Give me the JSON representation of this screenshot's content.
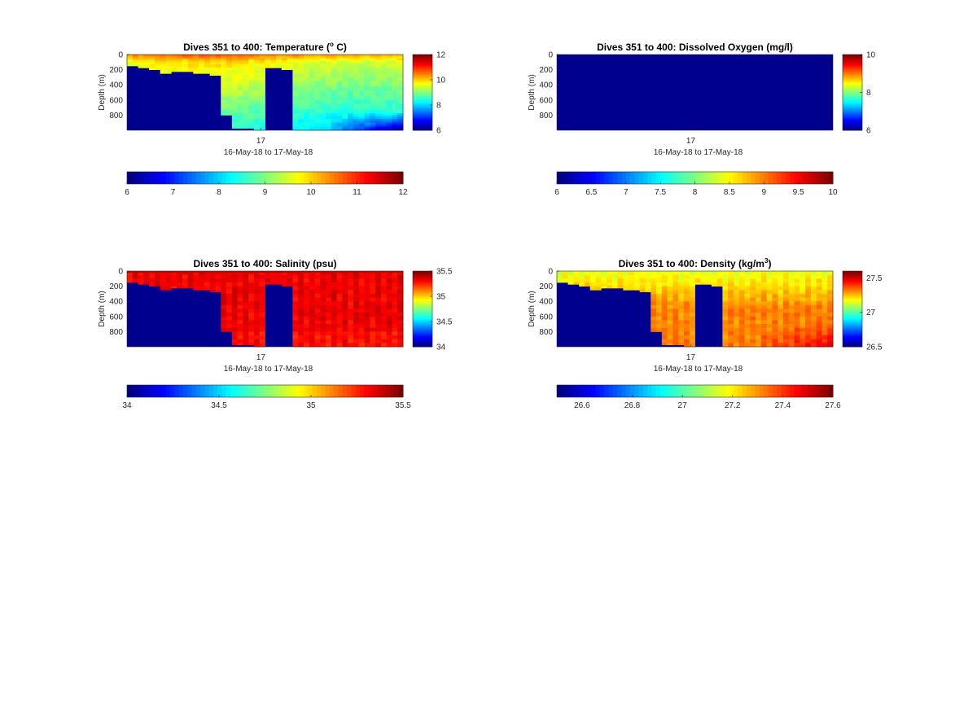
{
  "chart_data": [
    {
      "type": "heatmap",
      "title": "Dives 351 to 400: Temperature (",
      "title_sup": "o",
      "title_end": " C)",
      "xlabel": "16-May-18 to 17-May-18",
      "ylabel": "Depth (m)",
      "x_ticks": [
        "17"
      ],
      "y_ticks": [
        "0",
        "200",
        "400",
        "600",
        "800"
      ],
      "ylim": [
        0,
        1000
      ],
      "colormap": "jet",
      "clim": [
        6,
        12
      ],
      "colorbar_ticks": [
        "6",
        "8",
        "10",
        "12"
      ],
      "h_colorbar_ticks": [
        "6",
        "7",
        "8",
        "9",
        "10",
        "11",
        "12"
      ],
      "nodata_color": "#00008f",
      "bottom_profile": [
        135,
        135,
        165,
        165,
        185,
        200,
        240,
        240,
        210,
        210,
        210,
        220,
        230,
        250,
        250,
        260,
        260,
        800,
        800,
        960,
        960,
        960,
        960,
        1000,
        1000,
        170,
        170,
        170,
        200,
        200,
        1000
      ],
      "field": "temperature"
    },
    {
      "type": "heatmap",
      "title": "Dives 351 to 400: Dissolved Oxygen (mg/l)",
      "xlabel": "16-May-18 to 17-May-18",
      "ylabel": "Depth (m)",
      "x_ticks": [
        "17"
      ],
      "y_ticks": [
        "0",
        "200",
        "400",
        "600",
        "800"
      ],
      "ylim": [
        0,
        1000
      ],
      "colormap": "jet",
      "clim": [
        6,
        10
      ],
      "colorbar_ticks": [
        "6",
        "8",
        "10"
      ],
      "h_colorbar_ticks": [
        "6",
        "6.5",
        "7",
        "7.5",
        "8",
        "8.5",
        "9",
        "9.5",
        "10"
      ],
      "nodata_color": "#00008f",
      "field": "empty"
    },
    {
      "type": "heatmap",
      "title": "Dives 351 to 400: Salinity (psu)",
      "xlabel": "16-May-18 to 17-May-18",
      "ylabel": "Depth (m)",
      "x_ticks": [
        "17"
      ],
      "y_ticks": [
        "0",
        "200",
        "400",
        "600",
        "800"
      ],
      "ylim": [
        0,
        1000
      ],
      "colormap": "jet",
      "clim": [
        34,
        35.5
      ],
      "colorbar_ticks": [
        "34",
        "34.5",
        "35",
        "35.5"
      ],
      "h_colorbar_ticks": [
        "34",
        "34.5",
        "35",
        "35.5"
      ],
      "nodata_color": "#00008f",
      "bottom_profile": [
        135,
        135,
        165,
        165,
        185,
        200,
        240,
        240,
        210,
        210,
        210,
        220,
        230,
        250,
        250,
        260,
        260,
        800,
        800,
        960,
        960,
        960,
        960,
        1000,
        1000,
        170,
        170,
        170,
        200,
        200,
        1000
      ],
      "field": "salinity"
    },
    {
      "type": "heatmap",
      "title": "Dives 351 to 400: Density (kg/m",
      "title_sup": "3",
      "title_end": ")",
      "xlabel": "16-May-18 to 17-May-18",
      "ylabel": "Depth (m)",
      "x_ticks": [
        "17"
      ],
      "y_ticks": [
        "0",
        "200",
        "400",
        "600",
        "800"
      ],
      "ylim": [
        0,
        1000
      ],
      "colormap": "jet",
      "clim": [
        26.5,
        27.6
      ],
      "colorbar_ticks": [
        "26.5",
        "27",
        "27.5"
      ],
      "h_colorbar_ticks": [
        "26.6",
        "26.8",
        "27",
        "27.2",
        "27.4",
        "27.6"
      ],
      "h_colorbar_range": [
        26.5,
        27.6
      ],
      "nodata_color": "#00008f",
      "bottom_profile": [
        135,
        135,
        165,
        165,
        185,
        200,
        240,
        240,
        210,
        210,
        210,
        220,
        230,
        250,
        250,
        260,
        260,
        800,
        800,
        960,
        960,
        960,
        960,
        1000,
        1000,
        170,
        170,
        170,
        200,
        200,
        1000
      ],
      "field": "density"
    }
  ]
}
